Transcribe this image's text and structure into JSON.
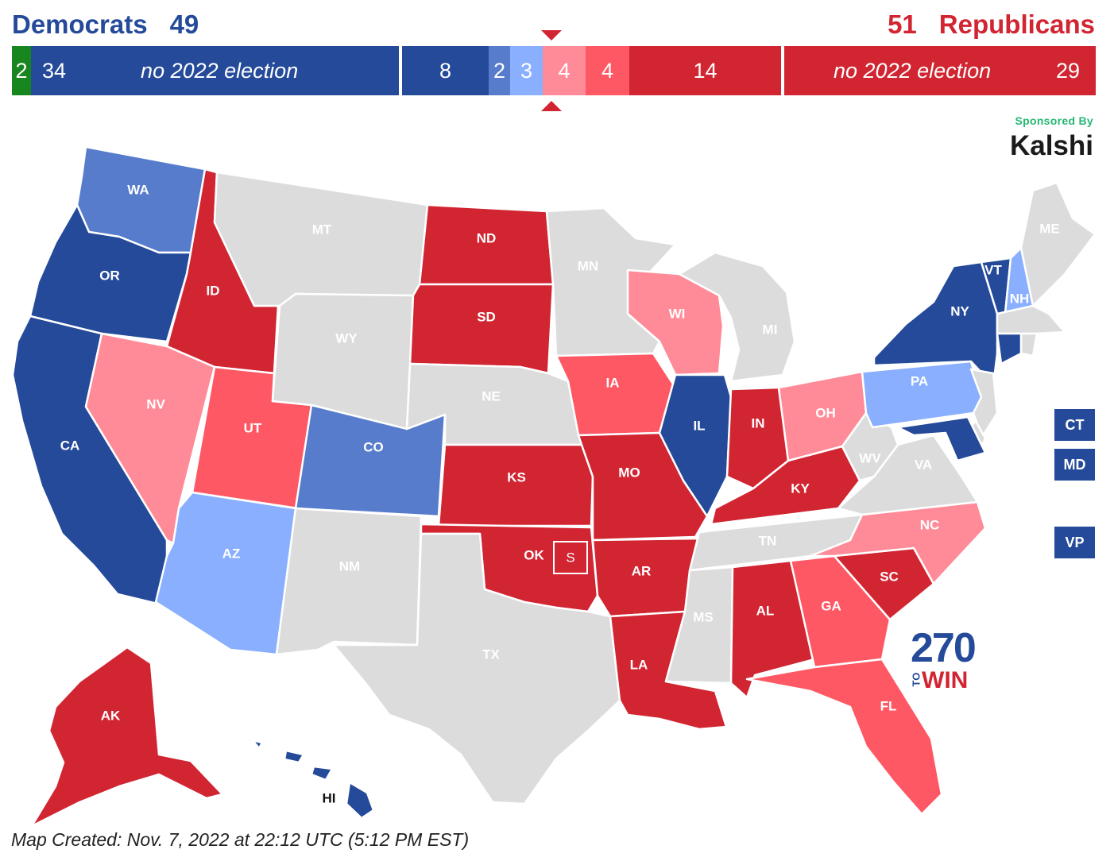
{
  "header": {
    "dem_label": "Democrats",
    "dem_total": "49",
    "rep_total": "51",
    "rep_label": "Republicans"
  },
  "seat_bar": [
    {
      "key": "ind",
      "label": "2",
      "color": "#18861f"
    },
    {
      "key": "dem_no_election",
      "label": "34",
      "sublabel": "no 2022 election",
      "color": "#244a99"
    },
    {
      "key": "safe_d",
      "label": "8",
      "color": "#244a99"
    },
    {
      "key": "likely_d",
      "label": "2",
      "color": "#577ccc"
    },
    {
      "key": "leans_d",
      "label": "3",
      "color": "#8aafff"
    },
    {
      "key": "tilt_r",
      "label": "4",
      "color": "#ff8b98"
    },
    {
      "key": "leans_r",
      "label": "4",
      "color": "#ff5865"
    },
    {
      "key": "safe_r",
      "label": "14",
      "color": "#d22532"
    },
    {
      "key": "rep_no_election",
      "label": "29",
      "sublabel": "no 2022 election",
      "color": "#d22532"
    }
  ],
  "colors": {
    "safe_d": "#244a99",
    "likely_d": "#577ccc",
    "leans_d": "#8aafff",
    "tilt_r": "#ff8b98",
    "leans_r": "#ff5865",
    "safe_r": "#d22532",
    "no_election": "#dcdcdc",
    "independent": "#18861f"
  },
  "sponsor": {
    "line1": "Sponsored By",
    "line2": "Kalshi"
  },
  "side_buttons": {
    "ct": "CT",
    "md": "MD",
    "vp": "VP"
  },
  "special_box_label": "S",
  "logo": {
    "number": "270",
    "to": "TO",
    "win": "WIN"
  },
  "footer": "Map Created: Nov. 7, 2022 at 22:12 UTC (5:12 PM EST)",
  "states": {
    "WA": {
      "label": "WA",
      "rating": "likely_d"
    },
    "OR": {
      "label": "OR",
      "rating": "safe_d"
    },
    "CA": {
      "label": "CA",
      "rating": "safe_d"
    },
    "ID": {
      "label": "ID",
      "rating": "safe_r"
    },
    "NV": {
      "label": "NV",
      "rating": "tilt_r"
    },
    "UT": {
      "label": "UT",
      "rating": "leans_r"
    },
    "AZ": {
      "label": "AZ",
      "rating": "leans_d"
    },
    "MT": {
      "label": "MT",
      "rating": "no_election"
    },
    "WY": {
      "label": "WY",
      "rating": "no_election"
    },
    "CO": {
      "label": "CO",
      "rating": "likely_d"
    },
    "NM": {
      "label": "NM",
      "rating": "no_election"
    },
    "ND": {
      "label": "ND",
      "rating": "safe_r"
    },
    "SD": {
      "label": "SD",
      "rating": "safe_r"
    },
    "NE": {
      "label": "NE",
      "rating": "no_election"
    },
    "KS": {
      "label": "KS",
      "rating": "safe_r"
    },
    "OK": {
      "label": "OK",
      "rating": "safe_r"
    },
    "TX": {
      "label": "TX",
      "rating": "no_election"
    },
    "MN": {
      "label": "MN",
      "rating": "no_election"
    },
    "IA": {
      "label": "IA",
      "rating": "leans_r"
    },
    "MO": {
      "label": "MO",
      "rating": "safe_r"
    },
    "AR": {
      "label": "AR",
      "rating": "safe_r"
    },
    "LA": {
      "label": "LA",
      "rating": "safe_r"
    },
    "WI": {
      "label": "WI",
      "rating": "tilt_r"
    },
    "IL": {
      "label": "IL",
      "rating": "safe_d"
    },
    "MI": {
      "label": "MI",
      "rating": "no_election"
    },
    "IN": {
      "label": "IN",
      "rating": "safe_r"
    },
    "OH": {
      "label": "OH",
      "rating": "tilt_r"
    },
    "KY": {
      "label": "KY",
      "rating": "safe_r"
    },
    "TN": {
      "label": "TN",
      "rating": "no_election"
    },
    "MS": {
      "label": "MS",
      "rating": "no_election"
    },
    "AL": {
      "label": "AL",
      "rating": "safe_r"
    },
    "GA": {
      "label": "GA",
      "rating": "leans_r"
    },
    "FL": {
      "label": "FL",
      "rating": "leans_r"
    },
    "SC": {
      "label": "SC",
      "rating": "safe_r"
    },
    "NC": {
      "label": "NC",
      "rating": "tilt_r"
    },
    "VA": {
      "label": "VA",
      "rating": "no_election"
    },
    "WV": {
      "label": "WV",
      "rating": "no_election"
    },
    "PA": {
      "label": "PA",
      "rating": "leans_d"
    },
    "NY": {
      "label": "NY",
      "rating": "safe_d"
    },
    "VT": {
      "label": "VT",
      "rating": "safe_d"
    },
    "NH": {
      "label": "NH",
      "rating": "leans_d"
    },
    "ME": {
      "label": "ME",
      "rating": "no_election"
    },
    "MA": {
      "label": "",
      "rating": "no_election"
    },
    "RI": {
      "label": "",
      "rating": "no_election"
    },
    "CT": {
      "label": "",
      "rating": "safe_d"
    },
    "NJ": {
      "label": "",
      "rating": "no_election"
    },
    "DE": {
      "label": "",
      "rating": "no_election"
    },
    "MD": {
      "label": "",
      "rating": "safe_d"
    },
    "AK": {
      "label": "AK",
      "rating": "safe_r"
    },
    "HI": {
      "label": "HI",
      "rating": "safe_d"
    }
  }
}
